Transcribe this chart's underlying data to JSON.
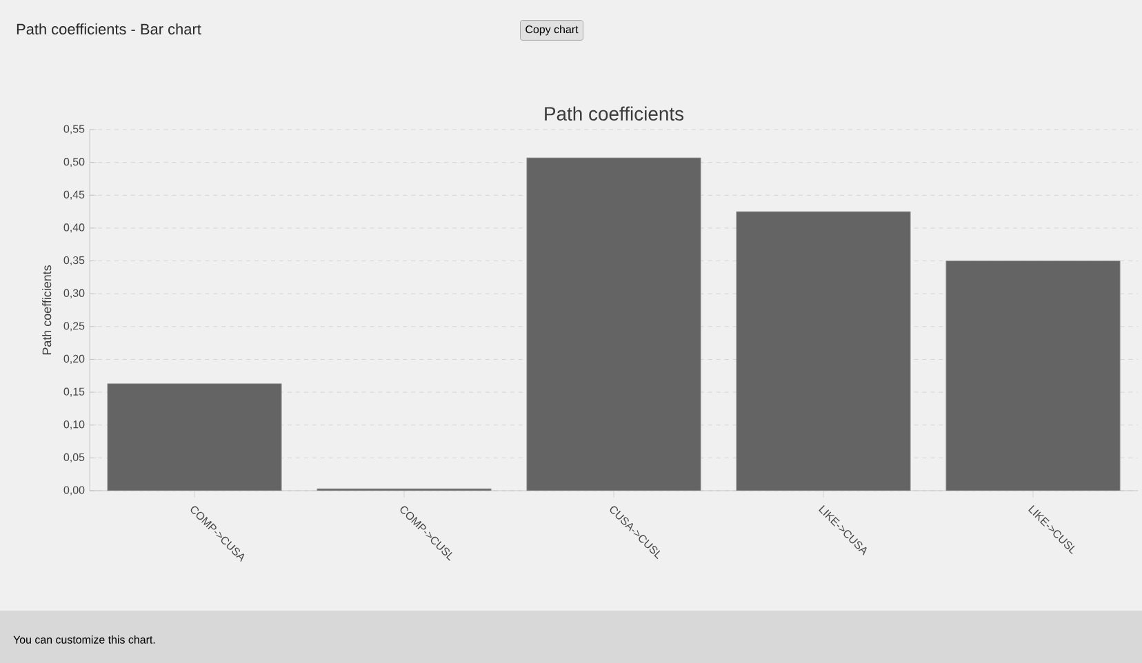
{
  "chart_data": {
    "type": "bar",
    "title": "Path coefficients",
    "ylabel": "Path coefficients",
    "annotations": [
      "Path coefficients - Bar chart",
      "Copy chart",
      "You can customize this chart."
    ],
    "categories": [
      "COMP->CUSA",
      "COMP->CUSL",
      "CUSA->CUSL",
      "LIKE->CUSA",
      "LIKE->CUSL"
    ],
    "values": [
      0.163,
      0.003,
      0.507,
      0.425,
      0.35
    ],
    "color": "#646464",
    "ylim": [
      0,
      0.55
    ],
    "yticks": [
      {
        "value": 0,
        "label": "0,00"
      },
      {
        "value": 0.05,
        "label": "0,05"
      },
      {
        "value": 0.1,
        "label": "0,10"
      },
      {
        "value": 0.15,
        "label": "0,15"
      },
      {
        "value": 0.2,
        "label": "0,20"
      },
      {
        "value": 0.25,
        "label": "0,25"
      },
      {
        "value": 0.3,
        "label": "0,30"
      },
      {
        "value": 0.35,
        "label": "0,35"
      },
      {
        "value": 0.4,
        "label": "0,40"
      },
      {
        "value": 0.45,
        "label": "0,45"
      },
      {
        "value": 0.5,
        "label": "0,50"
      },
      {
        "value": 0.55,
        "label": "0,55"
      }
    ],
    "grid": "y"
  }
}
